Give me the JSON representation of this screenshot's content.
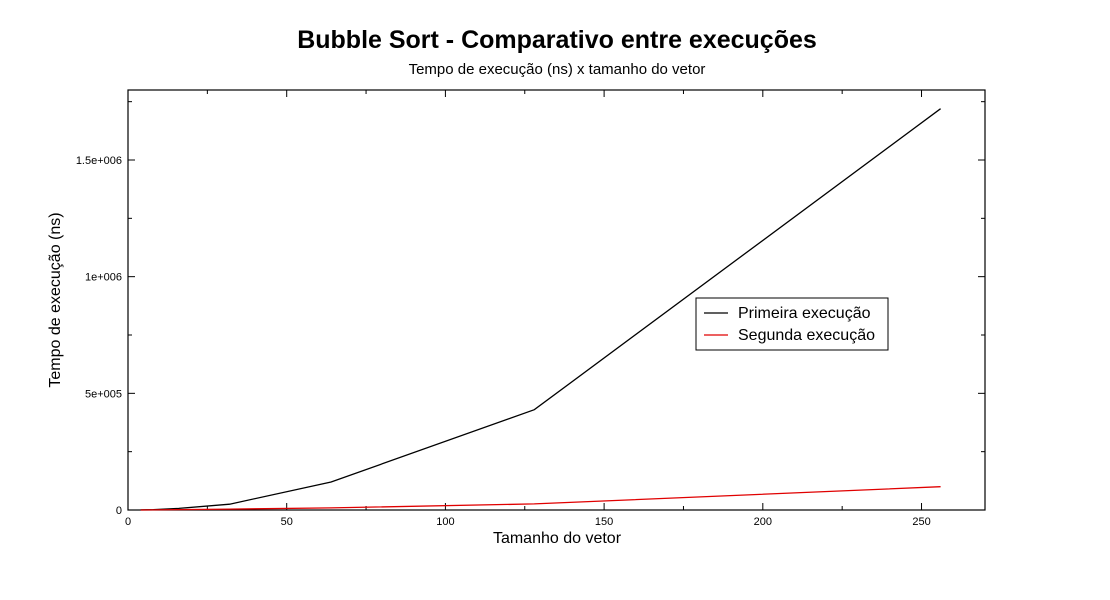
{
  "chart_data": {
    "type": "line",
    "title": "Bubble Sort - Comparativo entre execuções",
    "subtitle": "Tempo de execução (ns) x tamanho do vetor",
    "xlabel": "Tamanho do vetor",
    "ylabel": "Tempo de execução (ns)",
    "xlim": [
      0,
      270
    ],
    "ylim": [
      0,
      1800000
    ],
    "x_ticks": [
      0,
      50,
      100,
      150,
      200,
      250
    ],
    "x_tick_labels": [
      "0",
      "50",
      "100",
      "150",
      "200",
      "250"
    ],
    "y_ticks": [
      0,
      500000,
      1000000,
      1500000
    ],
    "y_tick_labels": [
      "0",
      "5e+005",
      "1e+006",
      "1.5e+006"
    ],
    "grid": false,
    "legend_position": "right",
    "series": [
      {
        "name": "Primeira execução",
        "color": "#000000",
        "x": [
          4,
          8,
          16,
          32,
          64,
          128,
          256
        ],
        "y": [
          500,
          1500,
          7000,
          25000,
          120000,
          430000,
          1720000
        ]
      },
      {
        "name": "Segunda execução",
        "color": "#e00000",
        "x": [
          4,
          8,
          16,
          32,
          64,
          128,
          256
        ],
        "y": [
          200,
          500,
          1500,
          4000,
          9000,
          26000,
          100000
        ]
      }
    ]
  }
}
